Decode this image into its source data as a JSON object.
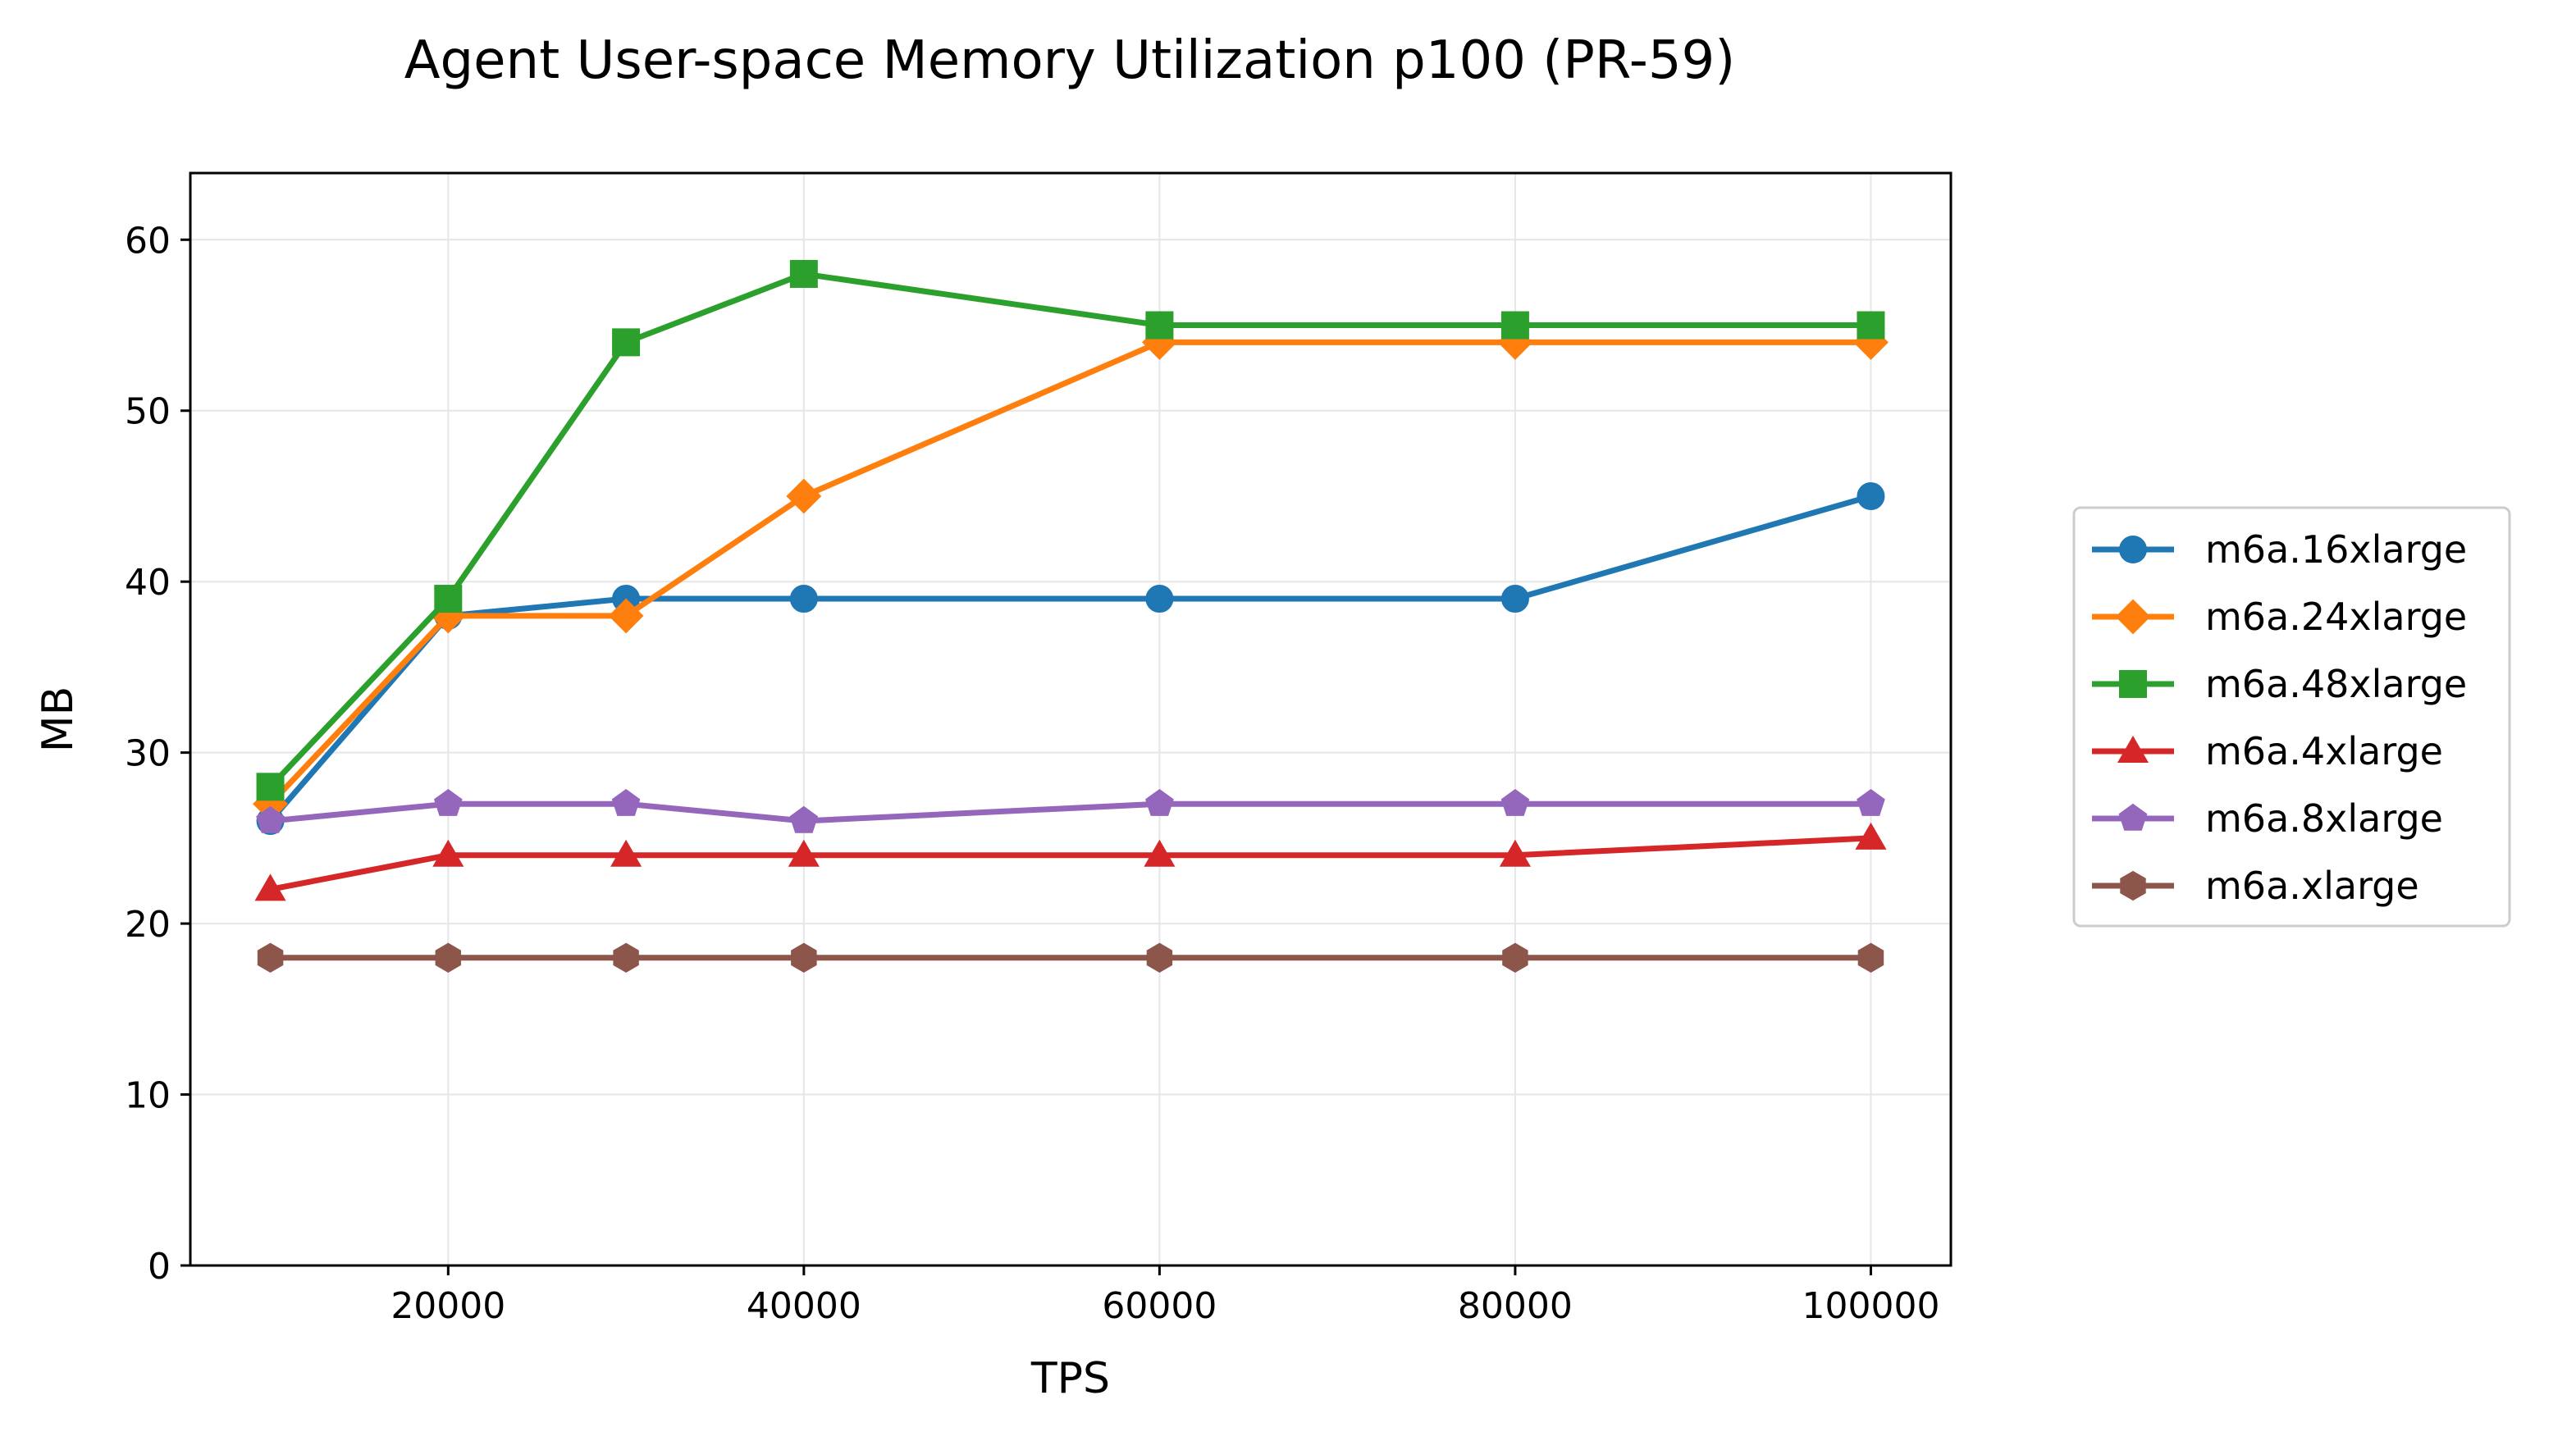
{
  "chart_data": {
    "type": "line",
    "title": "Agent User-space Memory Utilization p100 (PR-59)",
    "xlabel": "TPS",
    "ylabel": "MB",
    "xlim": [
      5500,
      104500
    ],
    "ylim": [
      0,
      63.9
    ],
    "x_ticks": [
      20000,
      40000,
      60000,
      80000,
      100000
    ],
    "y_ticks": [
      0,
      10,
      20,
      30,
      40,
      50,
      60
    ],
    "grid": true,
    "legend_placement": "right",
    "x": [
      10000,
      20000,
      30000,
      40000,
      60000,
      80000,
      100000
    ],
    "series": [
      {
        "name": "m6a.16xlarge",
        "color": "#1f77b4",
        "marker": "circle",
        "values": [
          26,
          38,
          39,
          39,
          39,
          39,
          45
        ]
      },
      {
        "name": "m6a.24xlarge",
        "color": "#ff7f0e",
        "marker": "diamond",
        "values": [
          27,
          38,
          38,
          45,
          54,
          54,
          54
        ]
      },
      {
        "name": "m6a.48xlarge",
        "color": "#2ca02c",
        "marker": "square",
        "values": [
          28,
          39,
          54,
          58,
          55,
          55,
          55
        ]
      },
      {
        "name": "m6a.4xlarge",
        "color": "#d62728",
        "marker": "triangle",
        "values": [
          22,
          24,
          24,
          24,
          24,
          24,
          25
        ]
      },
      {
        "name": "m6a.8xlarge",
        "color": "#9467bd",
        "marker": "pentagon",
        "values": [
          26,
          27,
          27,
          26,
          27,
          27,
          27
        ]
      },
      {
        "name": "m6a.xlarge",
        "color": "#8c564b",
        "marker": "hexagon",
        "values": [
          18,
          18,
          18,
          18,
          18,
          18,
          18
        ]
      }
    ]
  }
}
